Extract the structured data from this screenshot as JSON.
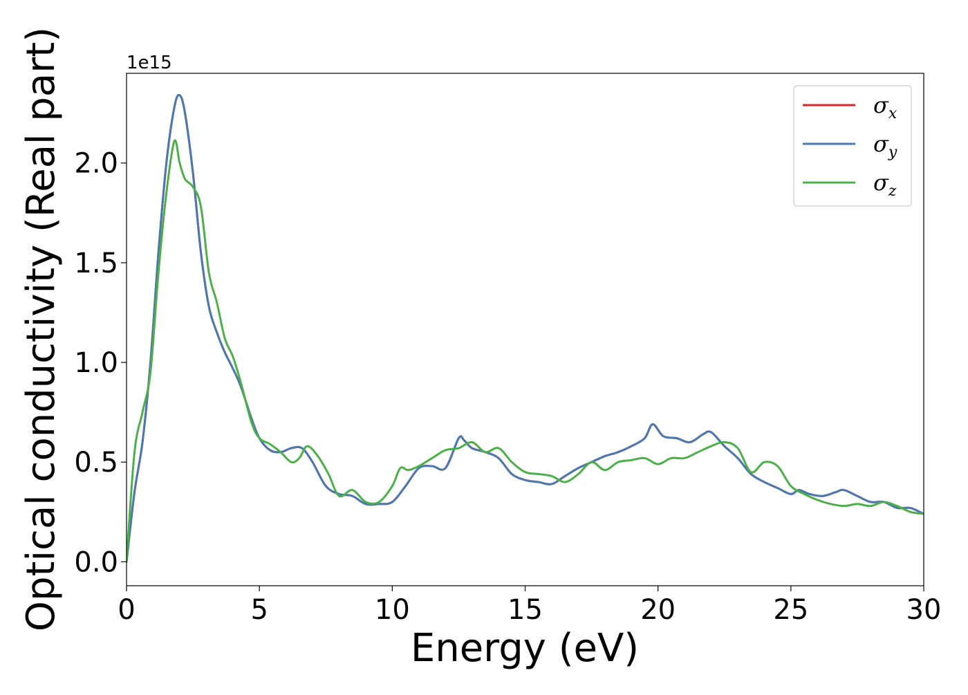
{
  "chart_data": {
    "type": "line",
    "xlabel": "Energy (eV)",
    "ylabel": "Optical conductivity (Real part)",
    "y_offset_text": "1e15",
    "xlim": [
      0,
      30
    ],
    "ylim": [
      -0.12,
      2.45
    ],
    "x_ticks": [
      0,
      5,
      10,
      15,
      20,
      25,
      30
    ],
    "y_ticks": [
      0.0,
      0.5,
      1.0,
      1.5,
      2.0
    ],
    "x_tick_labels": [
      "0",
      "5",
      "10",
      "15",
      "20",
      "25",
      "30"
    ],
    "y_tick_labels": [
      "0.0",
      "0.5",
      "1.0",
      "1.5",
      "2.0"
    ],
    "grid": false,
    "legend_position": "top-right",
    "legend": [
      {
        "symbol": "σ",
        "sub": "x",
        "color": "#d62728"
      },
      {
        "symbol": "σ",
        "sub": "y",
        "color": "#4a78b0"
      },
      {
        "symbol": "σ",
        "sub": "z",
        "color": "#4daf4a"
      }
    ],
    "series": [
      {
        "key": "sigma_x",
        "color": "#d62728",
        "x": [
          0,
          0.3,
          0.6,
          0.9,
          1.2,
          1.5,
          1.8,
          2.0,
          2.2,
          2.5,
          2.8,
          3.1,
          3.4,
          3.7,
          4.0,
          4.3,
          4.7,
          5.0,
          5.4,
          5.8,
          6.2,
          6.6,
          7.0,
          7.5,
          8.0,
          8.5,
          9.0,
          9.5,
          10.0,
          10.5,
          11.0,
          11.5,
          12.0,
          12.5,
          12.7,
          13.0,
          13.5,
          14.0,
          14.5,
          15.0,
          15.5,
          16.0,
          16.5,
          17.0,
          17.5,
          18.0,
          18.5,
          19.0,
          19.5,
          19.8,
          20.2,
          20.7,
          21.2,
          21.7,
          22.0,
          22.5,
          23.0,
          23.5,
          24.0,
          24.5,
          25.0,
          25.3,
          25.7,
          26.2,
          26.7,
          27.0,
          27.5,
          28.0,
          28.5,
          29.0,
          29.5,
          30.0
        ],
        "y": [
          0.0,
          0.35,
          0.6,
          1.0,
          1.55,
          2.0,
          2.28,
          2.34,
          2.25,
          1.95,
          1.55,
          1.28,
          1.15,
          1.05,
          0.97,
          0.88,
          0.72,
          0.62,
          0.56,
          0.55,
          0.57,
          0.57,
          0.5,
          0.38,
          0.34,
          0.33,
          0.29,
          0.29,
          0.3,
          0.38,
          0.47,
          0.48,
          0.47,
          0.62,
          0.61,
          0.57,
          0.55,
          0.52,
          0.44,
          0.41,
          0.4,
          0.39,
          0.43,
          0.47,
          0.5,
          0.53,
          0.55,
          0.58,
          0.62,
          0.69,
          0.63,
          0.62,
          0.6,
          0.64,
          0.65,
          0.58,
          0.52,
          0.44,
          0.4,
          0.37,
          0.34,
          0.36,
          0.34,
          0.33,
          0.35,
          0.36,
          0.33,
          0.3,
          0.3,
          0.27,
          0.27,
          0.24
        ]
      },
      {
        "key": "sigma_y",
        "color": "#4a78b0",
        "x": [
          0,
          0.3,
          0.6,
          0.9,
          1.2,
          1.5,
          1.8,
          2.0,
          2.2,
          2.5,
          2.8,
          3.1,
          3.4,
          3.7,
          4.0,
          4.3,
          4.7,
          5.0,
          5.4,
          5.8,
          6.2,
          6.6,
          7.0,
          7.5,
          8.0,
          8.5,
          9.0,
          9.5,
          10.0,
          10.5,
          11.0,
          11.5,
          12.0,
          12.5,
          12.7,
          13.0,
          13.5,
          14.0,
          14.5,
          15.0,
          15.5,
          16.0,
          16.5,
          17.0,
          17.5,
          18.0,
          18.5,
          19.0,
          19.5,
          19.8,
          20.2,
          20.7,
          21.2,
          21.7,
          22.0,
          22.5,
          23.0,
          23.5,
          24.0,
          24.5,
          25.0,
          25.3,
          25.7,
          26.2,
          26.7,
          27.0,
          27.5,
          28.0,
          28.5,
          29.0,
          29.5,
          30.0
        ],
        "y": [
          0.0,
          0.35,
          0.6,
          1.0,
          1.55,
          2.0,
          2.28,
          2.34,
          2.25,
          1.95,
          1.55,
          1.28,
          1.15,
          1.05,
          0.97,
          0.88,
          0.72,
          0.62,
          0.56,
          0.55,
          0.57,
          0.57,
          0.5,
          0.38,
          0.34,
          0.33,
          0.29,
          0.29,
          0.3,
          0.38,
          0.47,
          0.48,
          0.47,
          0.62,
          0.61,
          0.57,
          0.55,
          0.52,
          0.44,
          0.41,
          0.4,
          0.39,
          0.43,
          0.47,
          0.5,
          0.53,
          0.55,
          0.58,
          0.62,
          0.69,
          0.63,
          0.62,
          0.6,
          0.64,
          0.65,
          0.58,
          0.52,
          0.44,
          0.4,
          0.37,
          0.34,
          0.36,
          0.34,
          0.33,
          0.35,
          0.36,
          0.33,
          0.3,
          0.3,
          0.27,
          0.27,
          0.24
        ]
      },
      {
        "key": "sigma_z",
        "color": "#4daf4a",
        "x": [
          0,
          0.3,
          0.6,
          0.9,
          1.2,
          1.5,
          1.8,
          2.0,
          2.2,
          2.5,
          2.8,
          3.1,
          3.4,
          3.7,
          4.0,
          4.3,
          4.7,
          5.0,
          5.4,
          5.8,
          6.2,
          6.5,
          6.8,
          7.2,
          7.6,
          8.0,
          8.5,
          9.0,
          9.5,
          10.0,
          10.3,
          10.6,
          11.0,
          11.5,
          12.0,
          12.5,
          13.0,
          13.5,
          14.0,
          14.5,
          15.0,
          15.5,
          16.0,
          16.5,
          17.0,
          17.5,
          18.0,
          18.5,
          19.0,
          19.5,
          20.0,
          20.5,
          21.0,
          21.5,
          22.0,
          22.5,
          23.0,
          23.5,
          24.0,
          24.5,
          25.0,
          25.5,
          26.0,
          26.5,
          27.0,
          27.5,
          28.0,
          28.5,
          29.0,
          29.5,
          30.0
        ],
        "y": [
          0.0,
          0.55,
          0.75,
          0.95,
          1.45,
          1.85,
          2.11,
          2.0,
          1.92,
          1.88,
          1.78,
          1.45,
          1.3,
          1.12,
          1.03,
          0.9,
          0.7,
          0.62,
          0.59,
          0.55,
          0.5,
          0.52,
          0.58,
          0.53,
          0.44,
          0.33,
          0.36,
          0.3,
          0.3,
          0.38,
          0.47,
          0.46,
          0.48,
          0.52,
          0.56,
          0.57,
          0.6,
          0.55,
          0.57,
          0.5,
          0.45,
          0.44,
          0.43,
          0.4,
          0.44,
          0.5,
          0.46,
          0.5,
          0.51,
          0.52,
          0.49,
          0.52,
          0.52,
          0.55,
          0.58,
          0.6,
          0.57,
          0.45,
          0.5,
          0.48,
          0.38,
          0.34,
          0.31,
          0.29,
          0.28,
          0.29,
          0.28,
          0.3,
          0.28,
          0.25,
          0.24
        ]
      }
    ]
  }
}
